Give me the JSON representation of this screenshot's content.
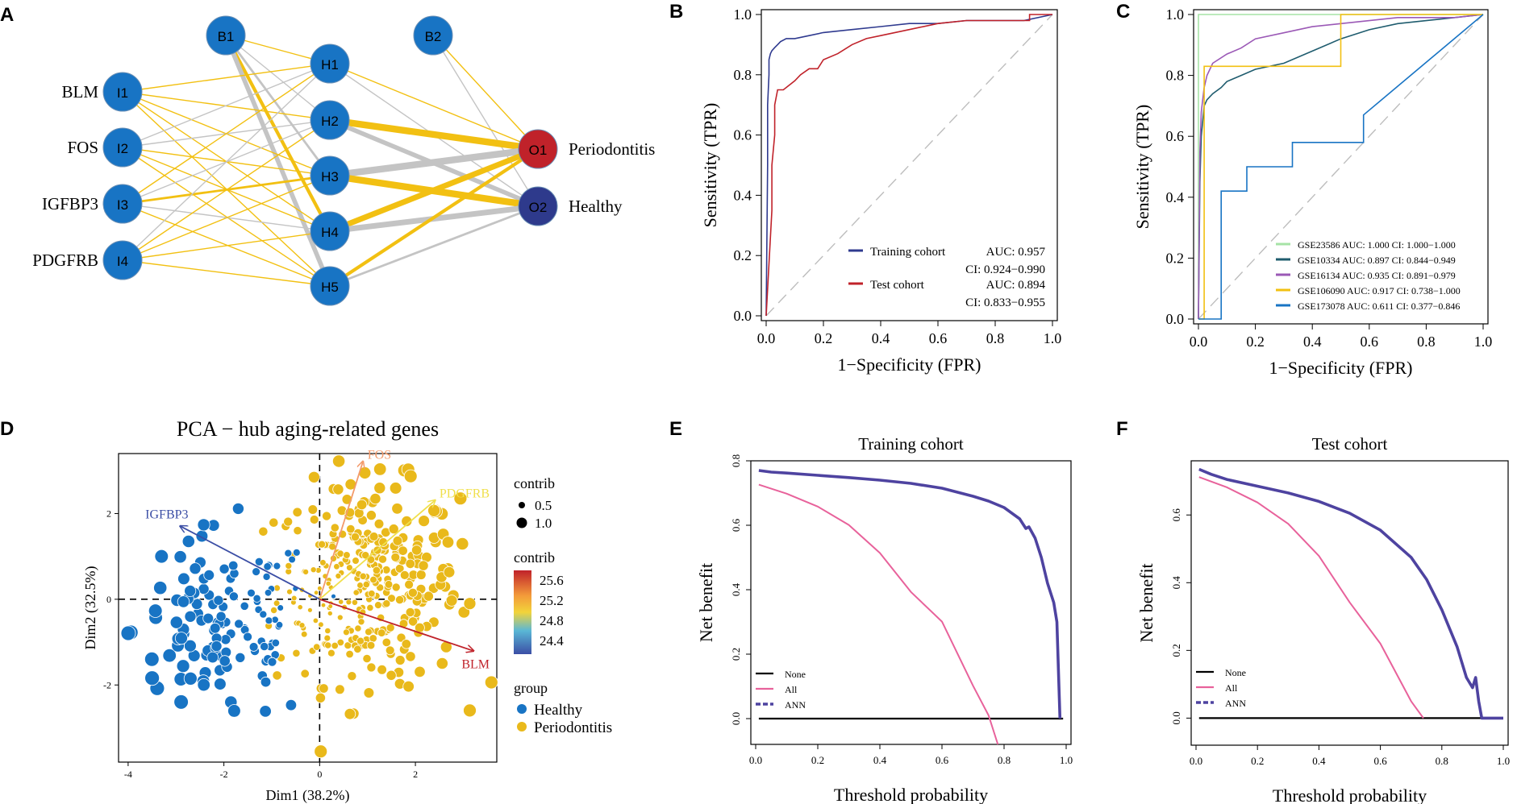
{
  "panels": {
    "A": "A",
    "B": "B",
    "C": "C",
    "D": "D",
    "E": "E",
    "F": "F"
  },
  "chart_data": [
    {
      "panel": "A",
      "type": "network",
      "nodes": [
        {
          "id": "B1",
          "layer": "bias1",
          "color": "#1874c4"
        },
        {
          "id": "B2",
          "layer": "bias2",
          "color": "#1874c4"
        },
        {
          "id": "I1",
          "layer": "input",
          "color": "#1874c4",
          "label": "BLM"
        },
        {
          "id": "I2",
          "layer": "input",
          "color": "#1874c4",
          "label": "FOS"
        },
        {
          "id": "I3",
          "layer": "input",
          "color": "#1874c4",
          "label": "IGFBP3"
        },
        {
          "id": "I4",
          "layer": "input",
          "color": "#1874c4",
          "label": "PDGFRB"
        },
        {
          "id": "H1",
          "layer": "hidden",
          "color": "#1874c4"
        },
        {
          "id": "H2",
          "layer": "hidden",
          "color": "#1874c4"
        },
        {
          "id": "H3",
          "layer": "hidden",
          "color": "#1874c4"
        },
        {
          "id": "H4",
          "layer": "hidden",
          "color": "#1874c4"
        },
        {
          "id": "H5",
          "layer": "hidden",
          "color": "#1874c4"
        },
        {
          "id": "O1",
          "layer": "output",
          "color": "#c0222a",
          "label": "Periodontitis"
        },
        {
          "id": "O2",
          "layer": "output",
          "color": "#2e3a8c",
          "label": "Healthy"
        }
      ],
      "edges": [
        {
          "from": "B1",
          "to": "H1",
          "sign": "pos",
          "weight": 1
        },
        {
          "from": "B1",
          "to": "H2",
          "sign": "neg",
          "weight": 1
        },
        {
          "from": "B1",
          "to": "H3",
          "sign": "neg",
          "weight": 2
        },
        {
          "from": "B1",
          "to": "H4",
          "sign": "pos",
          "weight": 3
        },
        {
          "from": "B1",
          "to": "H5",
          "sign": "neg",
          "weight": 4
        },
        {
          "from": "I1",
          "to": "H1",
          "sign": "pos",
          "weight": 1
        },
        {
          "from": "I1",
          "to": "H2",
          "sign": "pos",
          "weight": 1
        },
        {
          "from": "I1",
          "to": "H3",
          "sign": "pos",
          "weight": 1
        },
        {
          "from": "I1",
          "to": "H4",
          "sign": "pos",
          "weight": 1
        },
        {
          "from": "I1",
          "to": "H5",
          "sign": "pos",
          "weight": 1
        },
        {
          "from": "I2",
          "to": "H1",
          "sign": "neg",
          "weight": 1
        },
        {
          "from": "I2",
          "to": "H2",
          "sign": "neg",
          "weight": 1
        },
        {
          "from": "I2",
          "to": "H3",
          "sign": "pos",
          "weight": 1
        },
        {
          "from": "I2",
          "to": "H4",
          "sign": "pos",
          "weight": 1
        },
        {
          "from": "I2",
          "to": "H5",
          "sign": "pos",
          "weight": 1
        },
        {
          "from": "I3",
          "to": "H1",
          "sign": "pos",
          "weight": 1
        },
        {
          "from": "I3",
          "to": "H2",
          "sign": "neg",
          "weight": 1
        },
        {
          "from": "I3",
          "to": "H3",
          "sign": "pos",
          "weight": 2
        },
        {
          "from": "I3",
          "to": "H4",
          "sign": "neg",
          "weight": 1
        },
        {
          "from": "I3",
          "to": "H5",
          "sign": "pos",
          "weight": 1
        },
        {
          "from": "I4",
          "to": "H1",
          "sign": "neg",
          "weight": 1
        },
        {
          "from": "I4",
          "to": "H2",
          "sign": "pos",
          "weight": 1
        },
        {
          "from": "I4",
          "to": "H3",
          "sign": "pos",
          "weight": 1
        },
        {
          "from": "I4",
          "to": "H4",
          "sign": "pos",
          "weight": 1
        },
        {
          "from": "I4",
          "to": "H5",
          "sign": "pos",
          "weight": 1
        },
        {
          "from": "B2",
          "to": "O1",
          "sign": "pos",
          "weight": 1
        },
        {
          "from": "B2",
          "to": "O2",
          "sign": "neg",
          "weight": 1
        },
        {
          "from": "H1",
          "to": "O1",
          "sign": "pos",
          "weight": 1
        },
        {
          "from": "H1",
          "to": "O2",
          "sign": "neg",
          "weight": 1
        },
        {
          "from": "H2",
          "to": "O1",
          "sign": "pos",
          "weight": 6
        },
        {
          "from": "H2",
          "to": "O2",
          "sign": "neg",
          "weight": 4
        },
        {
          "from": "H3",
          "to": "O1",
          "sign": "neg",
          "weight": 6
        },
        {
          "from": "H3",
          "to": "O2",
          "sign": "pos",
          "weight": 6
        },
        {
          "from": "H4",
          "to": "O1",
          "sign": "pos",
          "weight": 5
        },
        {
          "from": "H4",
          "to": "O2",
          "sign": "neg",
          "weight": 5
        },
        {
          "from": "H5",
          "to": "O1",
          "sign": "pos",
          "weight": 3
        },
        {
          "from": "H5",
          "to": "O2",
          "sign": "neg",
          "weight": 2
        }
      ],
      "colors": {
        "pos": "#f2c012",
        "neg": "#c4c4c4"
      }
    },
    {
      "panel": "B",
      "type": "line",
      "xlabel": "1−Specificity (FPR)",
      "ylabel": "Sensitivity (TPR)",
      "xlim": [
        0,
        1
      ],
      "ylim": [
        0,
        1
      ],
      "ticks": [
        "0.0",
        "0.2",
        "0.4",
        "0.6",
        "0.8",
        "1.0"
      ],
      "diagonal": true,
      "series": [
        {
          "name": "Training cohort",
          "auc": "AUC: 0.957",
          "ci": "CI: 0.924−0.990",
          "color": "#2f3a8f",
          "x": [
            0,
            0.005,
            0.005,
            0.01,
            0.01,
            0.015,
            0.02,
            0.03,
            0.04,
            0.05,
            0.07,
            0.1,
            0.15,
            0.2,
            0.3,
            0.4,
            0.5,
            0.6,
            0.7,
            0.8,
            0.9,
            1.0
          ],
          "y": [
            0,
            0.5,
            0.7,
            0.8,
            0.85,
            0.87,
            0.88,
            0.89,
            0.9,
            0.91,
            0.92,
            0.92,
            0.93,
            0.94,
            0.95,
            0.96,
            0.97,
            0.97,
            0.98,
            0.98,
            0.98,
            1.0
          ]
        },
        {
          "name": "Test cohort",
          "auc": "AUC: 0.894",
          "ci": "CI: 0.833−0.955",
          "color": "#c0222a",
          "x": [
            0,
            0.02,
            0.02,
            0.03,
            0.03,
            0.04,
            0.06,
            0.1,
            0.12,
            0.15,
            0.18,
            0.2,
            0.25,
            0.3,
            0.35,
            0.4,
            0.5,
            0.6,
            0.7,
            0.8,
            0.9,
            0.92,
            0.92,
            1.0
          ],
          "y": [
            0,
            0.35,
            0.5,
            0.6,
            0.7,
            0.75,
            0.75,
            0.78,
            0.8,
            0.82,
            0.82,
            0.85,
            0.87,
            0.9,
            0.92,
            0.93,
            0.95,
            0.97,
            0.98,
            0.98,
            0.98,
            0.98,
            1.0,
            1.0
          ]
        }
      ]
    },
    {
      "panel": "C",
      "type": "line",
      "xlabel": "1−Specificity (FPR)",
      "ylabel": "Sensitivity (TPR)",
      "xlim": [
        0,
        1
      ],
      "ylim": [
        0,
        1
      ],
      "ticks": [
        "0.0",
        "0.2",
        "0.4",
        "0.6",
        "0.8",
        "1.0"
      ],
      "diagonal": true,
      "series": [
        {
          "name": "GSE23586 AUC: 1.000 CI: 1.000−1.000",
          "color": "#a6e3a6",
          "x": [
            0,
            0,
            1
          ],
          "y": [
            0,
            1,
            1
          ]
        },
        {
          "name": "GSE10334 AUC: 0.897 CI: 0.844−0.949",
          "color": "#1f5c6e",
          "x": [
            0,
            0.005,
            0.01,
            0.02,
            0.03,
            0.05,
            0.08,
            0.1,
            0.15,
            0.2,
            0.3,
            0.4,
            0.5,
            0.6,
            0.7,
            0.8,
            0.9,
            1.0
          ],
          "y": [
            0,
            0.45,
            0.6,
            0.7,
            0.72,
            0.74,
            0.76,
            0.78,
            0.8,
            0.82,
            0.84,
            0.88,
            0.92,
            0.95,
            0.97,
            0.98,
            0.99,
            1.0
          ]
        },
        {
          "name": "GSE16134 AUC: 0.935 CI: 0.891−0.979",
          "color": "#9b59b6",
          "x": [
            0,
            0.005,
            0.01,
            0.02,
            0.03,
            0.05,
            0.1,
            0.15,
            0.2,
            0.3,
            0.4,
            0.5,
            0.6,
            0.7,
            0.8,
            0.9,
            1.0
          ],
          "y": [
            0,
            0.55,
            0.68,
            0.76,
            0.8,
            0.84,
            0.87,
            0.89,
            0.92,
            0.94,
            0.96,
            0.97,
            0.98,
            0.99,
            0.99,
            0.99,
            1.0
          ]
        },
        {
          "name": "GSE106090 AUC: 0.917 CI: 0.738−1.000",
          "color": "#f2c012",
          "x": [
            0,
            0.02,
            0.02,
            0.5,
            0.5,
            1.0
          ],
          "y": [
            0,
            0,
            0.83,
            0.83,
            1.0,
            1.0
          ]
        },
        {
          "name": "GSE173078 AUC: 0.611 CI: 0.377−0.846",
          "color": "#1874c4",
          "x": [
            0,
            0.08,
            0.08,
            0.17,
            0.17,
            0.33,
            0.33,
            0.58,
            0.58,
            1.0
          ],
          "y": [
            0,
            0,
            0.42,
            0.42,
            0.5,
            0.5,
            0.58,
            0.58,
            0.67,
            1.0
          ]
        }
      ]
    },
    {
      "panel": "D",
      "type": "scatter",
      "title": "PCA − hub aging-related genes",
      "xlabel": "Dim1 (38.2%)",
      "ylabel": "Dim2 (32.5%)",
      "xlim": [
        -4.2,
        3.7
      ],
      "ylim": [
        -3.8,
        3.4
      ],
      "xticks": [
        "-4",
        "-2",
        "0",
        "2"
      ],
      "yticks": [
        "-2",
        "0",
        "2"
      ],
      "arrows": [
        {
          "label": "FOS",
          "x": 0.9,
          "y": 3.2,
          "color": "#f39a6b"
        },
        {
          "label": "PDGFRB",
          "x": 2.4,
          "y": 2.3,
          "color": "#f0e04c"
        },
        {
          "label": "IGFBP3",
          "x": -2.9,
          "y": 1.7,
          "color": "#3b4ea5"
        },
        {
          "label": "BLM",
          "x": 3.2,
          "y": -1.2,
          "color": "#c0222a"
        }
      ],
      "legend": {
        "contrib_size_title": "contrib",
        "size_entries": [
          "0.5",
          "1.0"
        ],
        "contrib_color_title": "contrib",
        "color_ticks": [
          "25.6",
          "25.2",
          "24.8",
          "24.4"
        ],
        "group_title": "group",
        "groups": [
          {
            "name": "Healthy",
            "color": "#1874c4"
          },
          {
            "name": "Periodontitis",
            "color": "#e9b91b"
          }
        ]
      }
    },
    {
      "panel": "E",
      "type": "line",
      "title": "Training cohort",
      "xlabel": "Threshold probability",
      "ylabel": "Net benefit",
      "xlim": [
        0,
        1
      ],
      "ylim": [
        -0.08,
        0.8
      ],
      "xticks": [
        "0.0",
        "0.2",
        "0.4",
        "0.6",
        "0.8",
        "1.0"
      ],
      "yticks": [
        "0.0",
        "0.2",
        "0.4",
        "0.6",
        "0.8"
      ],
      "series": [
        {
          "name": "None",
          "color": "#000000",
          "x": [
            0.01,
            0.99
          ],
          "y": [
            0,
            0
          ]
        },
        {
          "name": "All",
          "color": "#e8629b",
          "x": [
            0.01,
            0.1,
            0.2,
            0.3,
            0.4,
            0.5,
            0.6,
            0.7,
            0.75,
            0.78
          ],
          "y": [
            0.726,
            0.698,
            0.658,
            0.601,
            0.514,
            0.393,
            0.301,
            0.102,
            0.01,
            -0.08
          ]
        },
        {
          "name": "ANN",
          "color": "#4e43a0",
          "x": [
            0.01,
            0.05,
            0.1,
            0.2,
            0.3,
            0.4,
            0.5,
            0.6,
            0.7,
            0.75,
            0.8,
            0.85,
            0.87,
            0.88,
            0.9,
            0.92,
            0.94,
            0.96,
            0.97,
            0.975,
            0.98
          ],
          "y": [
            0.77,
            0.765,
            0.762,
            0.755,
            0.748,
            0.74,
            0.73,
            0.715,
            0.69,
            0.675,
            0.655,
            0.62,
            0.59,
            0.595,
            0.56,
            0.5,
            0.42,
            0.36,
            0.3,
            0.15,
            0.0
          ]
        }
      ]
    },
    {
      "panel": "F",
      "type": "line",
      "title": "Test cohort",
      "xlabel": "Threshold probability",
      "ylabel": "Net benefit",
      "xlim": [
        0,
        1
      ],
      "ylim": [
        -0.08,
        0.76
      ],
      "xticks": [
        "0.0",
        "0.2",
        "0.4",
        "0.6",
        "0.8",
        "1.0"
      ],
      "yticks": [
        "0.0",
        "0.2",
        "0.4",
        "0.6"
      ],
      "series": [
        {
          "name": "None",
          "color": "#000000",
          "x": [
            0.01,
            0.99
          ],
          "y": [
            0,
            0
          ]
        },
        {
          "name": "All",
          "color": "#e8629b",
          "x": [
            0.01,
            0.1,
            0.2,
            0.3,
            0.4,
            0.5,
            0.6,
            0.7,
            0.74
          ],
          "y": [
            0.712,
            0.682,
            0.637,
            0.574,
            0.479,
            0.342,
            0.22,
            0.05,
            0.0
          ]
        },
        {
          "name": "ANN",
          "color": "#4e43a0",
          "x": [
            0.01,
            0.05,
            0.1,
            0.2,
            0.3,
            0.4,
            0.5,
            0.6,
            0.7,
            0.75,
            0.8,
            0.85,
            0.88,
            0.9,
            0.91,
            0.92,
            0.93,
            1.0
          ],
          "y": [
            0.735,
            0.72,
            0.705,
            0.685,
            0.665,
            0.64,
            0.605,
            0.555,
            0.475,
            0.41,
            0.32,
            0.21,
            0.12,
            0.09,
            0.12,
            0.05,
            0.0,
            0.0
          ]
        }
      ]
    }
  ]
}
